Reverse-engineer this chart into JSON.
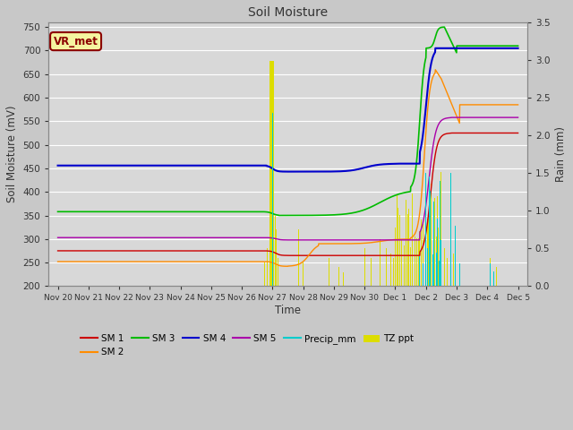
{
  "title": "Soil Moisture",
  "ylabel_left": "Soil Moisture (mV)",
  "ylabel_right": "Rain (mm)",
  "xlabel": "Time",
  "ylim_left": [
    200,
    760
  ],
  "ylim_right": [
    0.0,
    3.5
  ],
  "yticks_left": [
    200,
    250,
    300,
    350,
    400,
    450,
    500,
    550,
    600,
    650,
    700,
    750
  ],
  "yticks_right": [
    0.0,
    0.5,
    1.0,
    1.5,
    2.0,
    2.5,
    3.0,
    3.5
  ],
  "background_color": "#d8d8d8",
  "plot_bg_color": "#d8d8d8",
  "grid_color": "#ffffff",
  "annotation_text": "VR_met",
  "annotation_color": "#8B0000",
  "annotation_bg": "#f5f5a0",
  "sm1_color": "#cc0000",
  "sm2_color": "#ff8c00",
  "sm3_color": "#00bb00",
  "sm4_color": "#0000cc",
  "sm5_color": "#aa00aa",
  "precip_color": "#00cccc",
  "tzppt_color": "#dddd00",
  "xtick_labels": [
    "Nov 20",
    "Nov 21",
    "Nov 22",
    "Nov 23",
    "Nov 24",
    "Nov 25",
    "Nov 26",
    "Nov 27",
    "Nov 28",
    "Nov 29",
    "Nov 30",
    "Dec 1",
    "Dec 2",
    "Dec 3",
    "Dec 4",
    "Dec 5"
  ]
}
